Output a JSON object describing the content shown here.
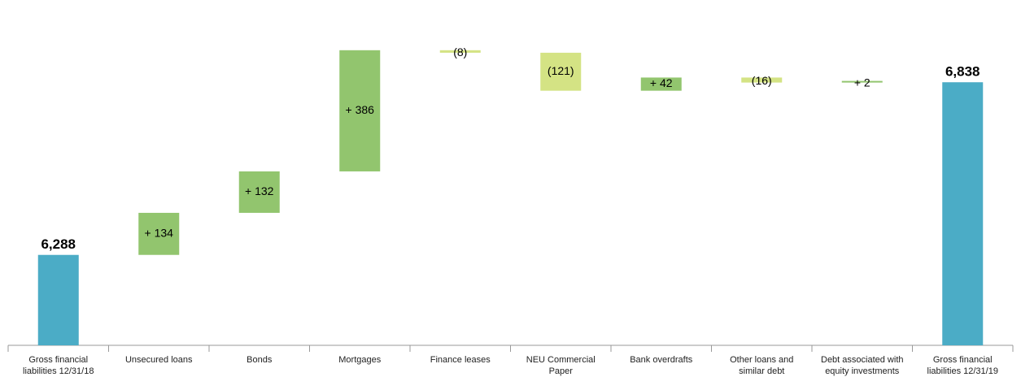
{
  "chart_data": {
    "type": "waterfall",
    "categories": [
      "Gross financial liabilities 12/31/18",
      "Unsecured loans",
      "Bonds",
      "Mortgages",
      "Finance leases",
      "NEU Commercial Paper",
      "Bank overdrafts",
      "Other loans and similar debt",
      "Debt associated with equity investments",
      "Gross financial liabilities 12/31/19"
    ],
    "measure": [
      "total",
      "relative",
      "relative",
      "relative",
      "relative",
      "relative",
      "relative",
      "relative",
      "relative",
      "total"
    ],
    "values": [
      6288,
      134,
      132,
      386,
      -8,
      -121,
      42,
      -16,
      2,
      6838
    ],
    "value_labels": [
      "6,288",
      "+ 134",
      "+ 132",
      "+ 386",
      "(8)",
      "(121)",
      "+ 42",
      "(16)",
      "+ 2",
      "6,838"
    ],
    "total_color": "#4bacc6",
    "increase_color": "#92c56e",
    "decrease_color": "#d4e384",
    "ylim": [
      6000,
      7100
    ]
  }
}
